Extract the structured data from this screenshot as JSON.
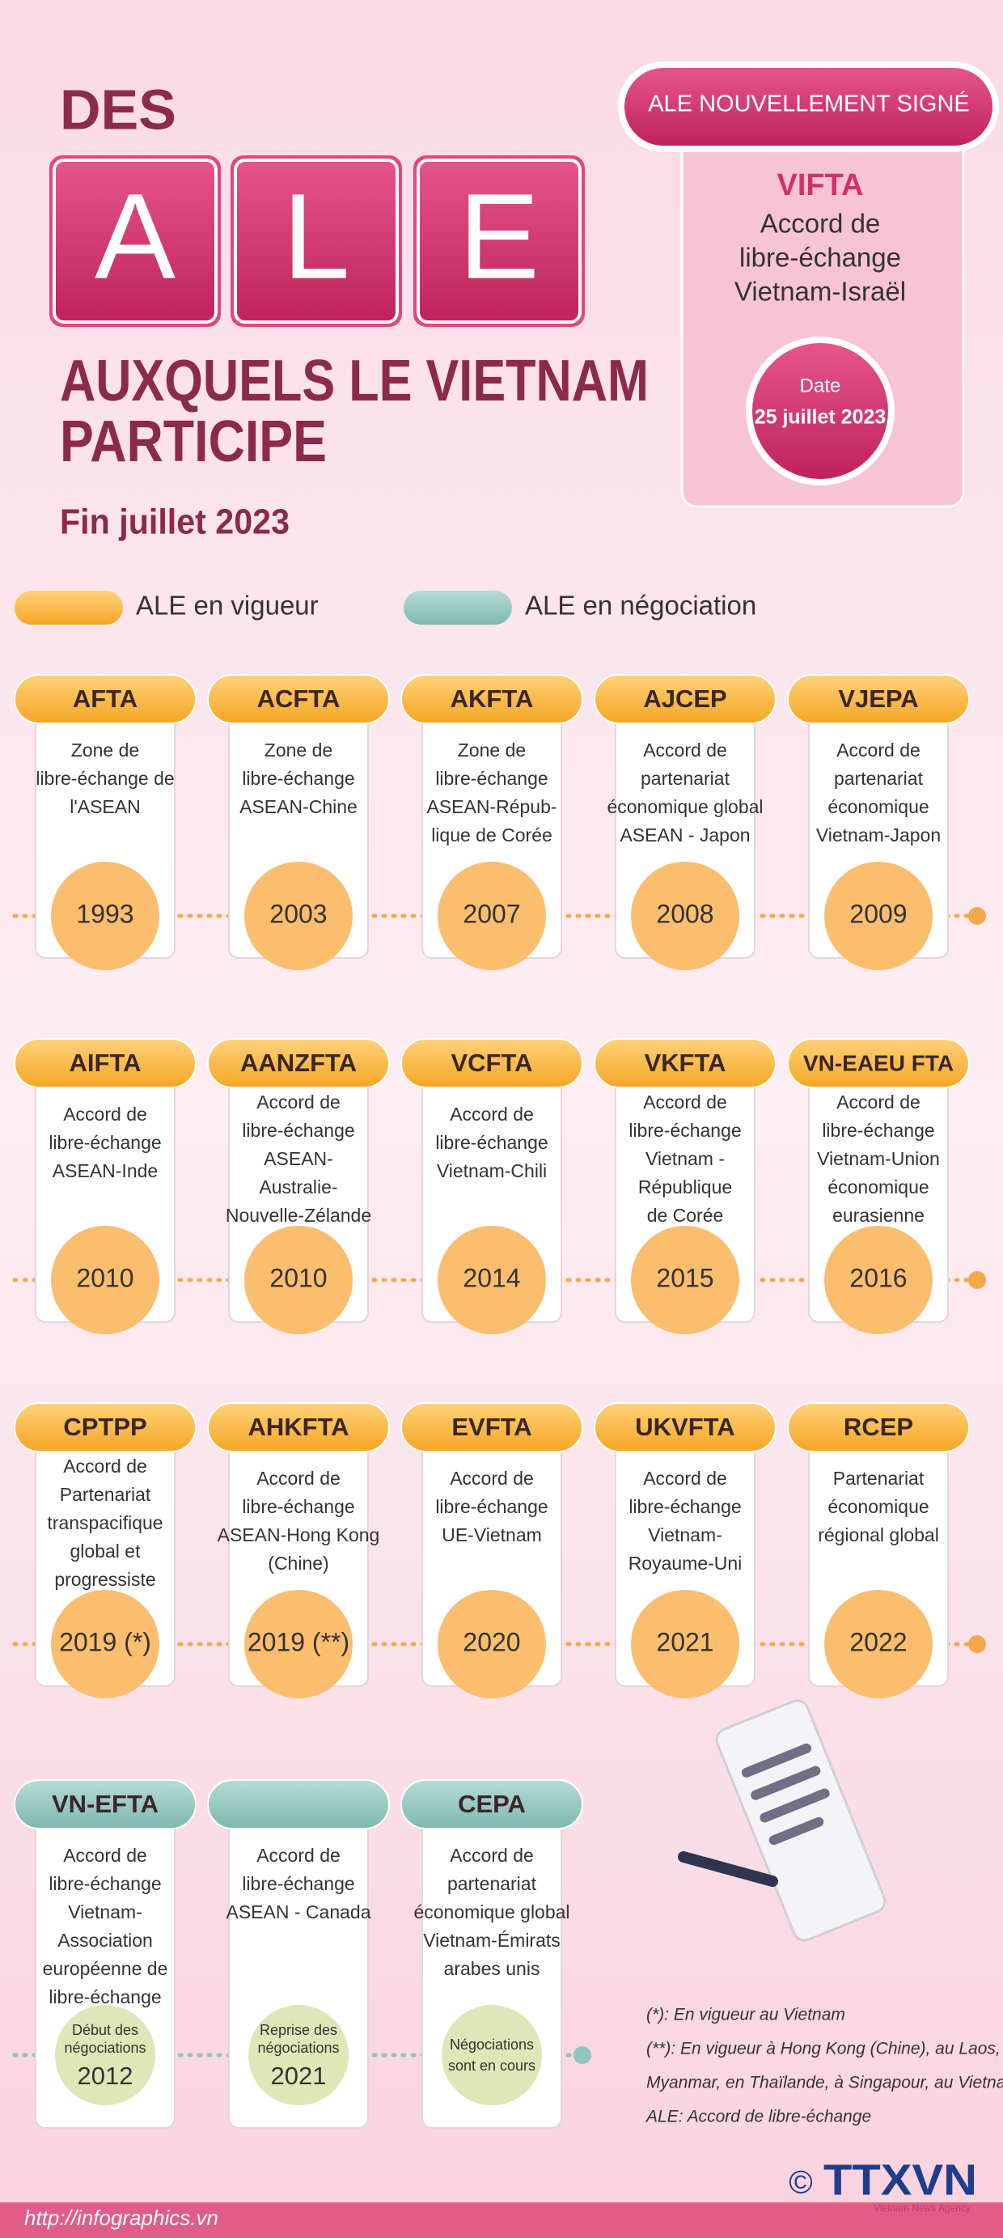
{
  "header": {
    "prefix": "DES",
    "letters": [
      "A",
      "L",
      "E"
    ],
    "title_lines": [
      "AUXQUELS LE VIETNAM",
      "PARTICIPE"
    ],
    "subtitle": "Fin juillet 2023"
  },
  "new_agreement": {
    "badge": "ALE NOUVELLEMENT SIGNÉ",
    "code": "VIFTA",
    "desc": [
      "Accord de",
      "libre-échange",
      "Vietnam-Israël"
    ],
    "date_label": "Date",
    "date": "25 juillet 2023"
  },
  "legend": [
    {
      "label": "ALE en vigueur",
      "status": "in_force"
    },
    {
      "label": "ALE en négociation",
      "status": "negotiating"
    }
  ],
  "agreements": [
    {
      "code": "AFTA",
      "desc": [
        "Zone de",
        "libre-échange de",
        "l'ASEAN"
      ],
      "year": "1993",
      "status": "in_force"
    },
    {
      "code": "ACFTA",
      "desc": [
        "Zone de",
        "libre-échange",
        "ASEAN-Chine"
      ],
      "year": "2003",
      "status": "in_force"
    },
    {
      "code": "AKFTA",
      "desc": [
        "Zone de",
        "libre-échange",
        "ASEAN-Répub-",
        "lique de Corée"
      ],
      "year": "2007",
      "status": "in_force"
    },
    {
      "code": "AJCEP",
      "desc": [
        "Accord de",
        "partenariat",
        "économique global",
        "ASEAN - Japon"
      ],
      "year": "2008",
      "status": "in_force"
    },
    {
      "code": "VJEPA",
      "desc": [
        "Accord de",
        "partenariat",
        "économique",
        "Vietnam-Japon"
      ],
      "year": "2009",
      "status": "in_force"
    },
    {
      "code": "AIFTA",
      "desc": [
        "Accord de",
        "libre-échange",
        "ASEAN-Inde"
      ],
      "year": "2010",
      "status": "in_force"
    },
    {
      "code": "AANZFTA",
      "desc": [
        "Accord de",
        "libre-échange",
        "ASEAN-",
        "Australie-",
        "Nouvelle-Zélande"
      ],
      "year": "2010",
      "status": "in_force"
    },
    {
      "code": "VCFTA",
      "desc": [
        "Accord de",
        "libre-échange",
        "Vietnam-Chili"
      ],
      "year": "2014",
      "status": "in_force"
    },
    {
      "code": "VKFTA",
      "desc": [
        "Accord de",
        "libre-échange",
        "Vietnam -",
        "République",
        "de Corée"
      ],
      "year": "2015",
      "status": "in_force"
    },
    {
      "code": "VN-EAEU FTA",
      "desc": [
        "Accord de",
        "libre-échange",
        "Vietnam-Union",
        "économique",
        "eurasienne"
      ],
      "year": "2016",
      "status": "in_force"
    },
    {
      "code": "CPTPP",
      "desc": [
        "Accord de",
        "Partenariat",
        "transpacifique",
        "global et",
        "progressiste"
      ],
      "year": "2019 (*)",
      "status": "in_force"
    },
    {
      "code": "AHKFTA",
      "desc": [
        "Accord de",
        "libre-échange",
        "ASEAN-Hong Kong",
        "(Chine)"
      ],
      "year": "2019 (**)",
      "status": "in_force"
    },
    {
      "code": "EVFTA",
      "desc": [
        "Accord de",
        "libre-échange",
        "UE-Vietnam"
      ],
      "year": "2020",
      "status": "in_force"
    },
    {
      "code": "UKVFTA",
      "desc": [
        "Accord de",
        "libre-échange",
        "Vietnam-",
        "Royaume-Uni"
      ],
      "year": "2021",
      "status": "in_force"
    },
    {
      "code": "RCEP",
      "desc": [
        "Partenariat",
        "économique",
        "régional global"
      ],
      "year": "2022",
      "status": "in_force"
    },
    {
      "code": "VN-EFTA",
      "desc": [
        "Accord de",
        "libre-échange",
        "Vietnam-",
        "Association",
        "européenne de",
        "libre-échange"
      ],
      "year_label": [
        "Début des",
        "négociations"
      ],
      "year": "2012",
      "status": "negotiating"
    },
    {
      "desc": [
        "Accord de",
        "libre-échange",
        "ASEAN - Canada"
      ],
      "year_label": [
        "Reprise des",
        "négociations"
      ],
      "year": "2021",
      "status": "negotiating"
    },
    {
      "code": "CEPA",
      "desc": [
        "Accord de",
        "partenariat",
        "économique global",
        "Vietnam-Émirats",
        "arabes unis"
      ],
      "year_label": [
        "Négociations",
        "sont en cours"
      ],
      "status": "negotiating"
    }
  ],
  "notes": [
    "(*): En vigueur au Vietnam",
    "(**): En vigueur à Hong Kong (Chine), au Laos, au",
    "Myanmar, en Thaïlande, à Singapour, au Vietnam",
    "ALE: Accord de libre-échange"
  ],
  "footer": {
    "url": "http://infographics.vn",
    "copyright": "©",
    "logo": "TTXVN",
    "logo_sub": "Vietnam News Agency"
  }
}
